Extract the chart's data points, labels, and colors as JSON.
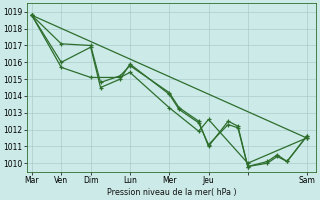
{
  "bg_color": "#cceae8",
  "grid_color": "#aacccc",
  "line_color": "#2d6e2d",
  "ylabel": "Pression niveau de la mer( hPa )",
  "ylim": [
    1009.5,
    1019.5
  ],
  "yticks": [
    1010,
    1011,
    1012,
    1013,
    1014,
    1015,
    1016,
    1017,
    1018,
    1019
  ],
  "xtick_positions": [
    0,
    3,
    6,
    10,
    14,
    18,
    22,
    28
  ],
  "xtick_labels": [
    "Mar",
    "Ven",
    "Dim",
    "Lun",
    "Mer",
    "Jeu",
    "",
    "Sam"
  ],
  "xlim": [
    -0.5,
    29
  ],
  "series": [
    {
      "x": [
        0,
        3,
        6,
        7,
        9,
        10,
        14,
        15,
        17,
        18,
        20,
        21,
        22,
        24,
        25,
        26,
        28
      ],
      "y": [
        1018.8,
        1017.1,
        1017.0,
        1014.8,
        1015.2,
        1015.8,
        1014.2,
        1013.3,
        1012.5,
        1011.0,
        1012.5,
        1012.2,
        1009.8,
        1010.1,
        1010.5,
        1010.1,
        1011.6
      ]
    },
    {
      "x": [
        0,
        3,
        6,
        7,
        9,
        10,
        14,
        15,
        17,
        18,
        20,
        21,
        22,
        24,
        25,
        26,
        28
      ],
      "y": [
        1018.8,
        1016.0,
        1016.9,
        1014.5,
        1015.0,
        1015.9,
        1014.1,
        1013.2,
        1012.4,
        1011.1,
        1012.3,
        1012.1,
        1009.8,
        1010.0,
        1010.4,
        1010.1,
        1011.6
      ]
    },
    {
      "x": [
        0,
        3,
        6,
        9,
        10,
        14,
        17,
        18,
        22,
        28
      ],
      "y": [
        1018.8,
        1015.7,
        1015.1,
        1015.1,
        1015.4,
        1013.3,
        1011.9,
        1012.6,
        1010.0,
        1011.5
      ]
    },
    {
      "x": [
        0,
        28
      ],
      "y": [
        1018.8,
        1011.5
      ]
    }
  ],
  "lw": 0.9,
  "ms": 3.0
}
